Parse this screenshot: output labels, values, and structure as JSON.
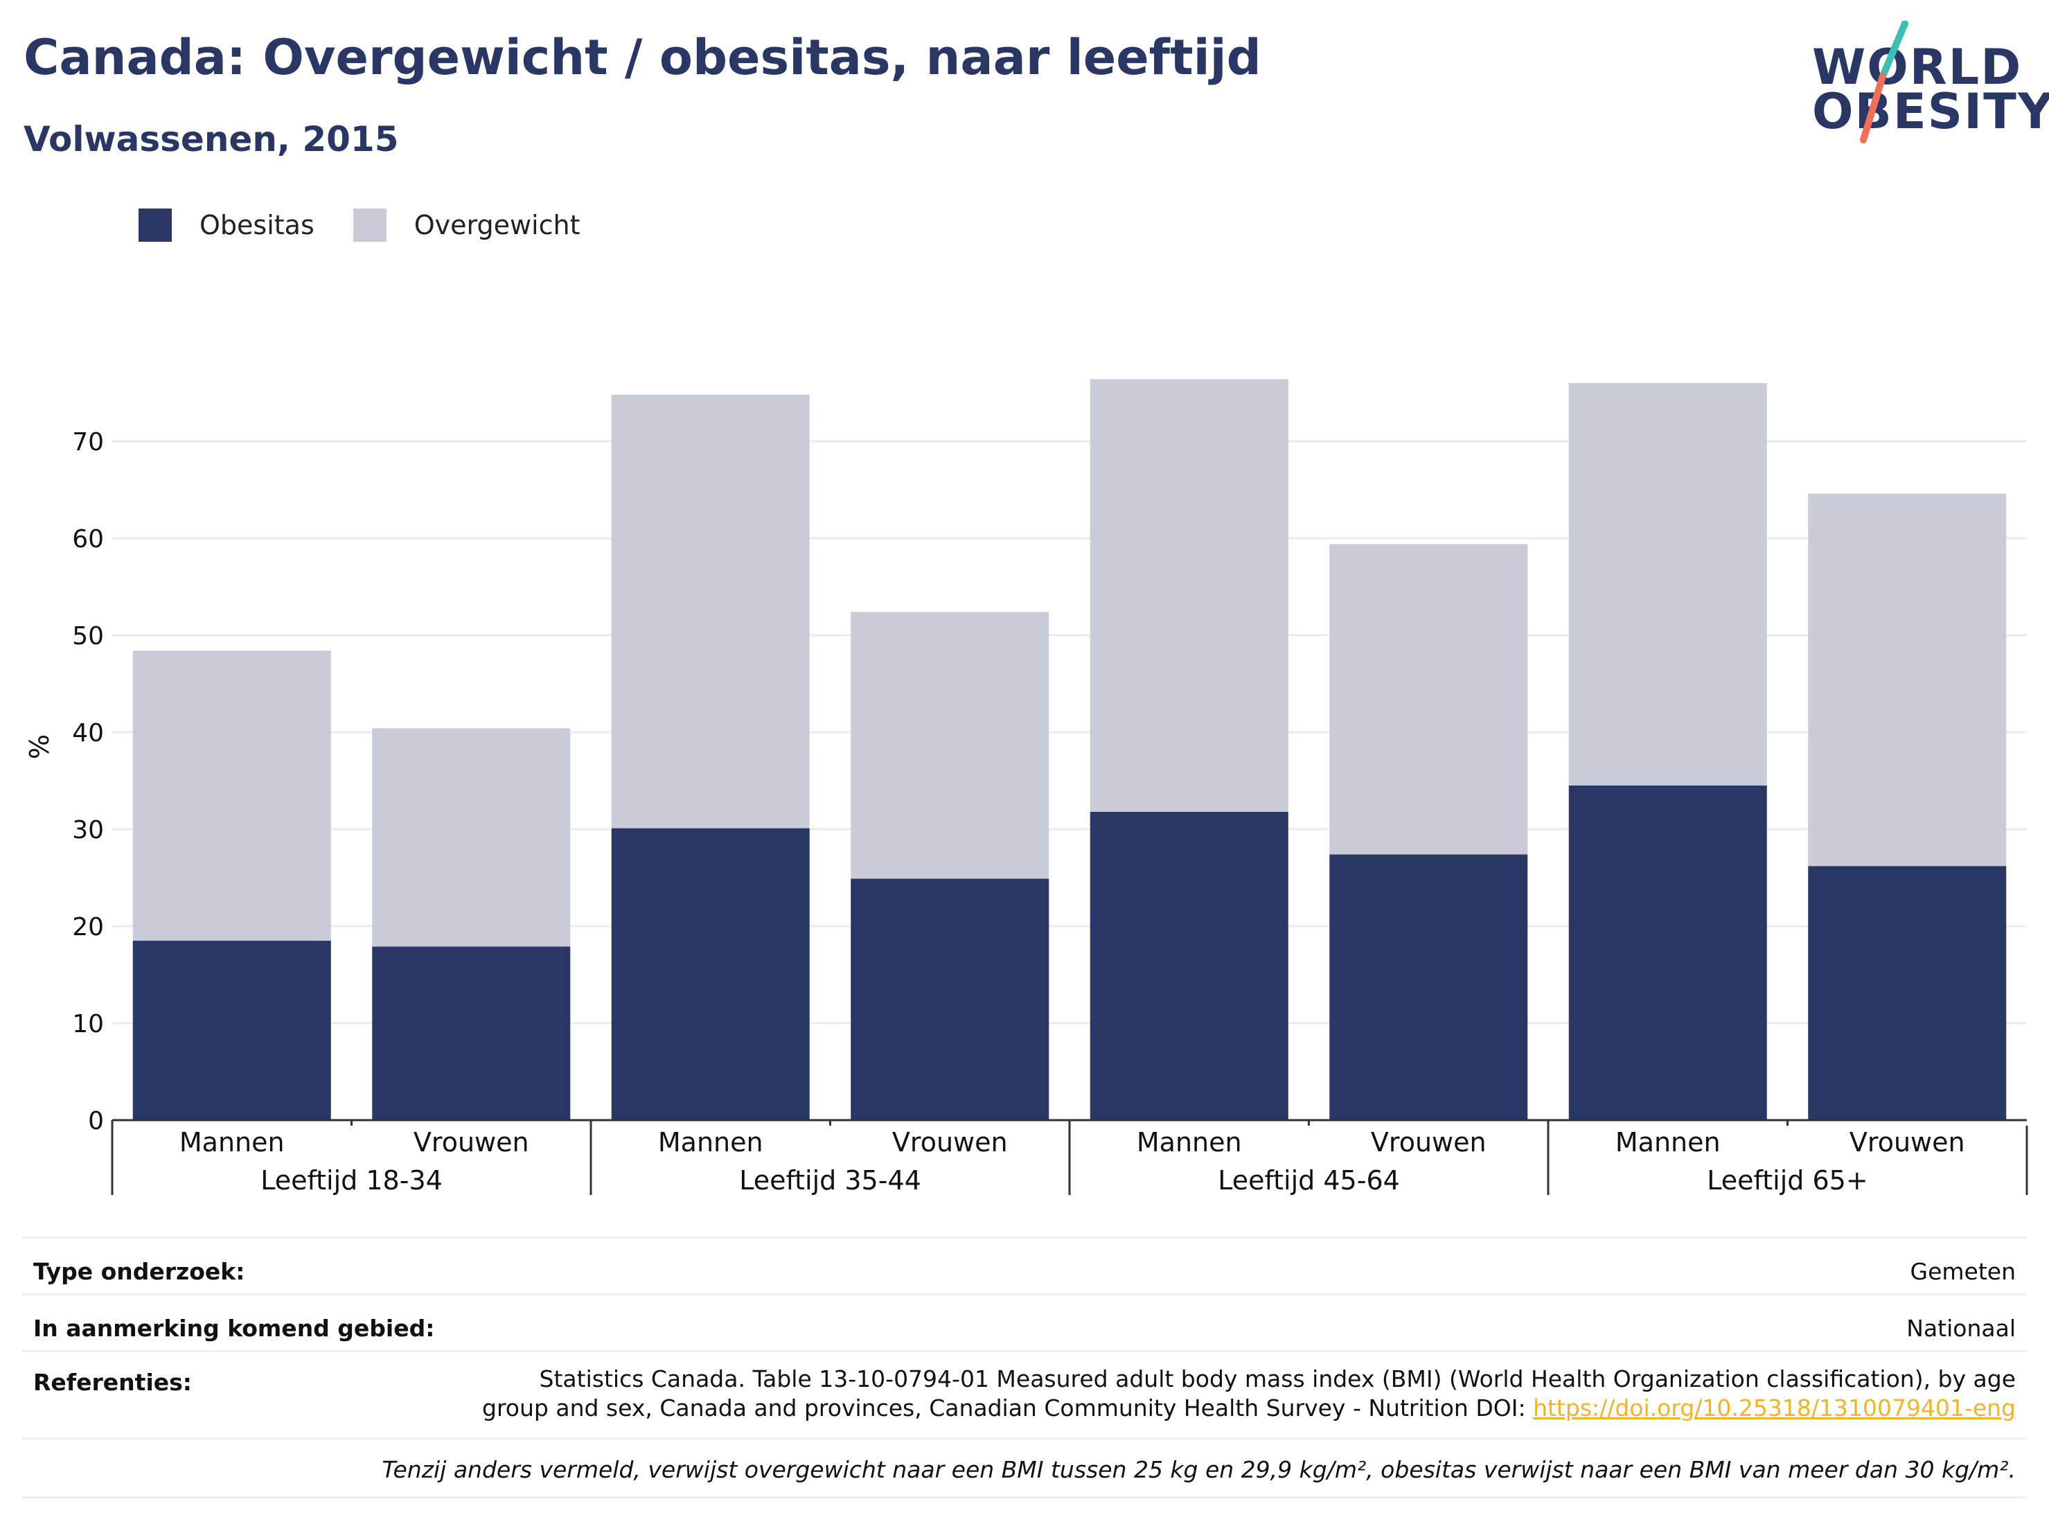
{
  "header": {
    "title": "Canada: Overgewicht / obesitas, naar leeftijd",
    "subtitle": "Volwassenen, 2015",
    "logo_line1": "WORLD",
    "logo_line2": "OBESITY"
  },
  "legend": {
    "obesity_label": "Obesitas",
    "overweight_label": "Overgewicht"
  },
  "colors": {
    "obesity": "#2a3663",
    "overweight": "#c9cbd7",
    "title": "#2a3663",
    "logo_accent_teal": "#3bbfb0",
    "logo_accent_coral": "#ef6f5a",
    "link": "#f0b429"
  },
  "chart_data": {
    "type": "bar",
    "stacked": true,
    "ylabel": "%",
    "ylim": [
      0,
      77
    ],
    "yticks": [
      0,
      10,
      20,
      30,
      40,
      50,
      60,
      70
    ],
    "grid": true,
    "legend_position": "top-left",
    "groups": [
      "Leeftijd 18-34",
      "Leeftijd 35-44",
      "Leeftijd 45-64",
      "Leeftijd 65+"
    ],
    "categories": [
      "Mannen",
      "Vrouwen",
      "Mannen",
      "Vrouwen",
      "Mannen",
      "Vrouwen",
      "Mannen",
      "Vrouwen"
    ],
    "series": [
      {
        "name": "Obesitas",
        "values": [
          18.5,
          17.9,
          30.1,
          24.9,
          31.8,
          27.4,
          34.5,
          26.2
        ]
      },
      {
        "name": "Overgewicht",
        "values": [
          29.9,
          22.5,
          44.7,
          27.5,
          44.6,
          32.0,
          41.5,
          38.4
        ]
      }
    ],
    "totals": [
      48.4,
      40.4,
      74.8,
      52.4,
      76.4,
      59.4,
      76.0,
      64.6
    ]
  },
  "meta": {
    "survey_type_label": "Type onderzoek:",
    "survey_type_value": "Gemeten",
    "area_label": "In aanmerking komend gebied:",
    "area_value": "Nationaal",
    "references_label": "Referenties:",
    "references_line1": "Statistics Canada. Table 13-10-0794-01 Measured adult body mass index (BMI) (World Health Organization classification), by age",
    "references_line2": "group and sex, Canada and provinces, Canadian Community Health Survey - Nutrition DOI: ",
    "references_link": "https://doi.org/10.25318/1310079401-eng",
    "note": "Tenzij anders vermeld, verwijst overgewicht naar een BMI tussen 25 kg en 29,9 kg/m², obesitas verwijst naar een BMI van meer dan 30 kg/m²."
  }
}
